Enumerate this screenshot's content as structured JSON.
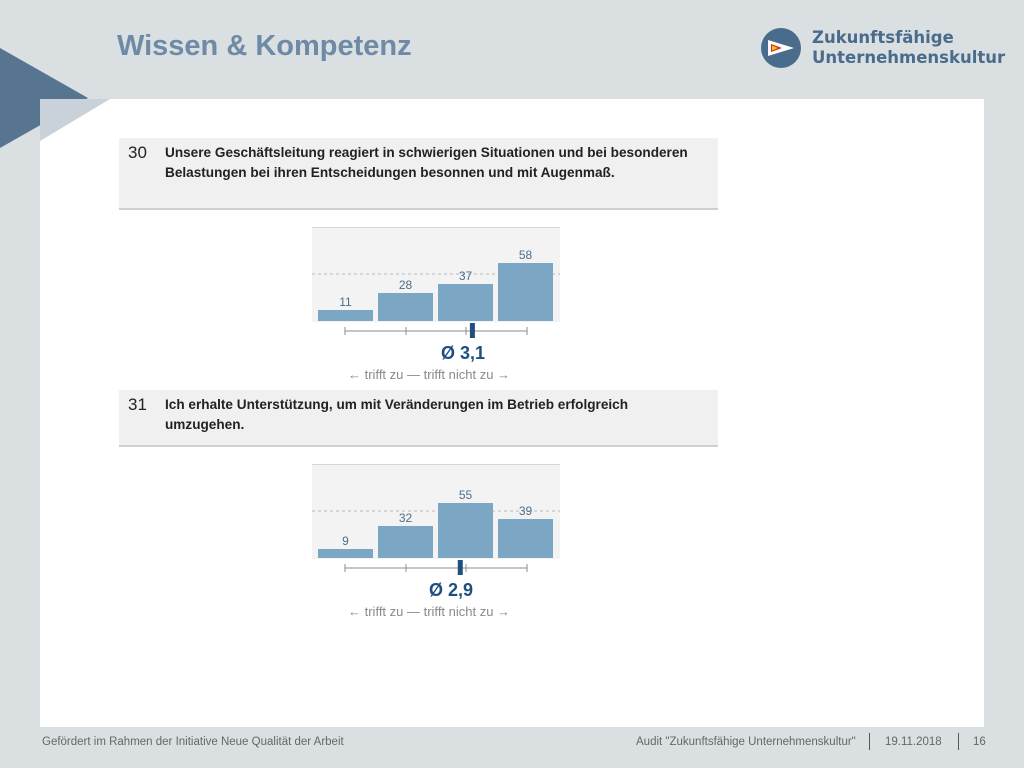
{
  "slide": {
    "title": "Wissen & Kompetenz",
    "logo_line1": "Zukunftsfähige",
    "logo_line2": "Unternehmenskultur",
    "colors": {
      "title": "#6e8aa6",
      "accent": "#577590",
      "bar": "#7ba7c4",
      "mean_marker": "#1f4f7f",
      "background": "#dadfe1"
    }
  },
  "questions": [
    {
      "number": "30",
      "text": "Unsere Geschäftsleitung reagiert in schwierigen Situationen und bei besonderen Belastungen bei ihren Entscheidungen besonnen und mit Augenmaß.",
      "mean_label": "Ø 3,1",
      "legend": "← trifft zu — trifft nicht zu →"
    },
    {
      "number": "31",
      "text": "Ich erhalte Unterstützung, um mit Veränderungen im Betrieb erfolgreich umzugehen.",
      "mean_label": "Ø 2,9",
      "legend": "← trifft zu — trifft nicht zu →"
    }
  ],
  "chart_data": [
    {
      "type": "bar",
      "categories": [
        "1",
        "2",
        "3",
        "4"
      ],
      "values": [
        11,
        28,
        37,
        58
      ],
      "mean": 3.1,
      "ylim": [
        0,
        80
      ],
      "grid": "dashed reference line"
    },
    {
      "type": "bar",
      "categories": [
        "1",
        "2",
        "3",
        "4"
      ],
      "values": [
        9,
        32,
        55,
        39
      ],
      "mean": 2.9,
      "ylim": [
        0,
        80
      ],
      "grid": "dashed reference line"
    }
  ],
  "footer": {
    "left": "Gefördert im Rahmen der Initiative Neue Qualität der Arbeit",
    "audit": "Audit \"Zukunftsfähige Unternehmenskultur\"",
    "date": "19.11.2018",
    "page": "16"
  }
}
